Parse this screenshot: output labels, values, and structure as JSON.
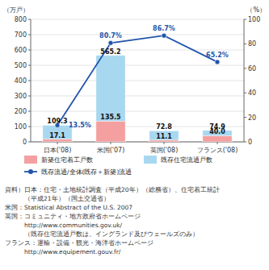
{
  "chart_data": {
    "type": "bar",
    "y_label": "（万戸）",
    "y2_label": "（%）",
    "categories": [
      "日本('08)",
      "米国('07)",
      "英国('08)",
      "フランス('08)"
    ],
    "series": [
      {
        "name": "新築住宅着工戸数",
        "color": "#f4a0a0",
        "values": [
          17.1,
          135.5,
          11.1,
          40.0
        ],
        "value_labels": [
          "17.1",
          "135.5",
          "11.1",
          "40.0"
        ]
      },
      {
        "name": "既存住宅流通戸数",
        "color": "#a8d8f0",
        "values": [
          109.3,
          565.2,
          72.8,
          74.9
        ]
      },
      {
        "name": "既存流通/全体(既存＋新築)流通",
        "color": "#2255aa",
        "type": "line",
        "marker": "circle",
        "axis": "y2",
        "values": [
          13.5,
          80.7,
          86.7,
          65.2
        ],
        "value_labels": [
          "13.5%",
          "80.7%",
          "86.7%",
          "65.2%"
        ]
      }
    ],
    "ylim": [
      0,
      800
    ],
    "yticks": [
      0,
      100,
      200,
      300,
      400,
      500,
      600,
      700,
      800
    ],
    "y2lim": [
      0,
      100
    ],
    "y2ticks": [
      0,
      20,
      40,
      60,
      80,
      100
    ],
    "grid": true,
    "data_labels": true,
    "legend": "bottom",
    "annotations": [
      "資料）日本：住宅・土地統計調査（平成20年）（総務省）、住宅着工統計",
      "　　　（平成21年）（国土交通省）",
      "米国：Statistical Abstract of the U.S. 2007",
      "英国：コミュニティ・地方政府省ホームページ",
      "　　　http://www.communities.gov.uk/",
      "　　　（既存住宅流通戸数は、イングランド及びウェールズのみ）",
      "フランス：運輸・設備・観光・海洋省ホームページ",
      "　　　http://www.equipement.gouv.fr/"
    ]
  }
}
